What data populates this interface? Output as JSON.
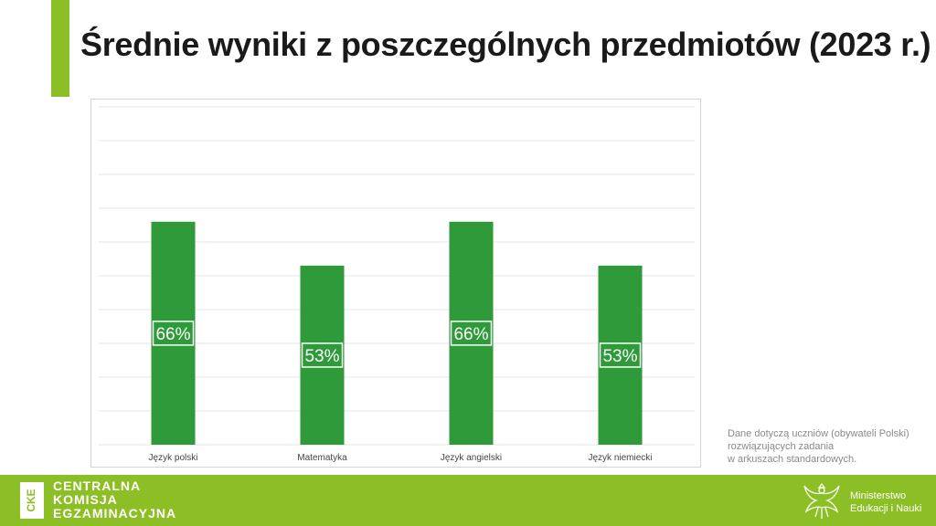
{
  "title": "Średnie wyniki z poszczególnych przedmiotów (2023 r.)",
  "note": {
    "line1": "Dane dotyczą uczniów (obywateli Polski)",
    "line2": "rozwiązujących zadania",
    "line3": "w arkuszach standardowych."
  },
  "footer": {
    "logo_mark": "CKE",
    "logo_line1": "CENTRALNA",
    "logo_line2": "KOMISJA",
    "logo_line3": "EGZAMINACYJNA",
    "ministry_line1": "Ministerstwo",
    "ministry_line2": "Edukacji i Nauki"
  },
  "colors": {
    "accent": "#8cbf26",
    "bar": "#2e9a3a",
    "grid": "#e6e6e6"
  },
  "chart_data": {
    "type": "bar",
    "categories": [
      "Język polski",
      "Matematyka",
      "Język angielski",
      "Język niemiecki"
    ],
    "values": [
      66,
      53,
      66,
      53
    ],
    "data_labels": [
      "66%",
      "53%",
      "66%",
      "53%"
    ],
    "ylim": [
      0,
      100
    ],
    "grid": true,
    "gridline_count": 10
  }
}
